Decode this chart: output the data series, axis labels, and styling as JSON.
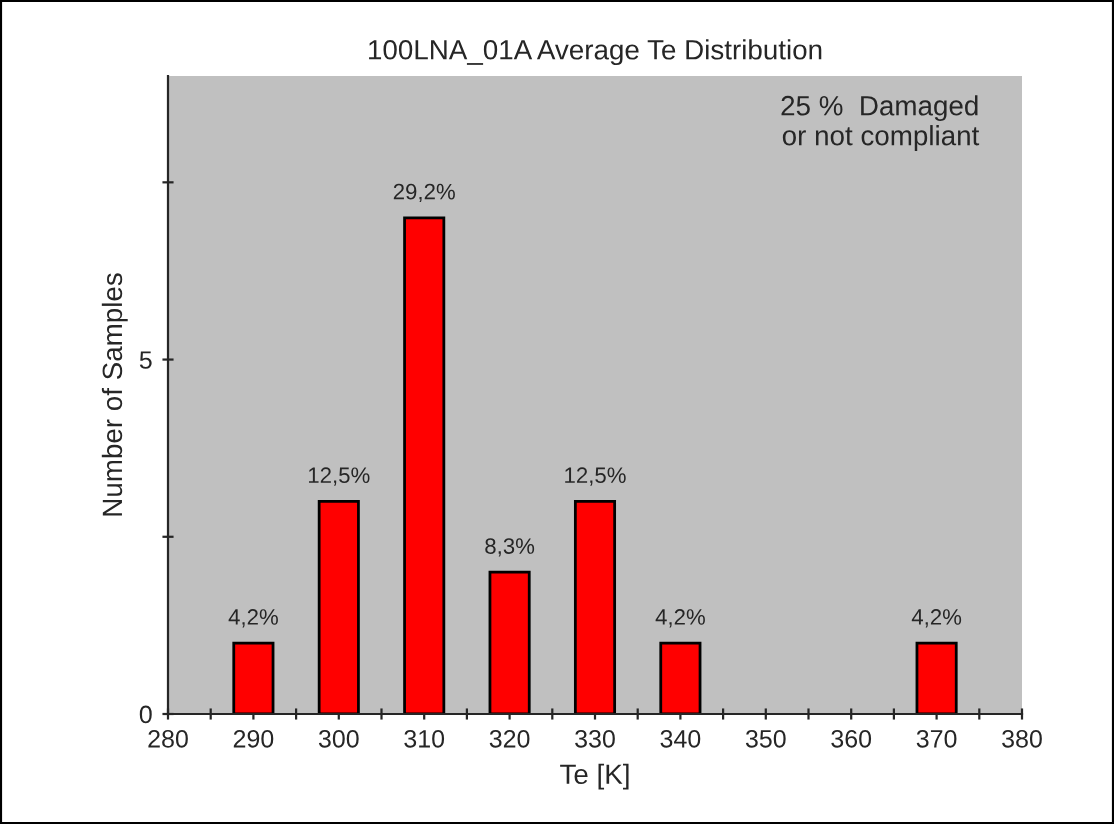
{
  "chart_data": {
    "type": "bar",
    "title": "100LNA_01A Average Te Distribution",
    "xlabel": "Te [K]",
    "ylabel": "Number of Samples",
    "x": [
      290,
      300,
      310,
      320,
      330,
      340,
      370
    ],
    "values": [
      1,
      3,
      7,
      2,
      3,
      1,
      1
    ],
    "color": "#ff0000",
    "xlim": [
      280,
      380
    ],
    "xticks": [
      280,
      {
        "value": 285,
        "label": null
      },
      290,
      {
        "value": 295,
        "label": null
      },
      300,
      {
        "value": 305,
        "label": null
      },
      310,
      {
        "value": 315,
        "label": null
      },
      320,
      {
        "value": 325,
        "label": null
      },
      330,
      {
        "value": 335,
        "label": null
      },
      340,
      {
        "value": 345,
        "label": null
      },
      350,
      {
        "value": 355,
        "label": null
      },
      360,
      {
        "value": 365,
        "label": null
      },
      370,
      {
        "value": 375,
        "label": null
      },
      380
    ],
    "ylim": [
      0,
      9
    ],
    "yticks": [
      0,
      {
        "value": 2.5,
        "label": null
      },
      5,
      {
        "value": 7.5,
        "label": null
      }
    ],
    "annotations": [
      "25 %  Damaged\nor not compliant",
      {
        "text": "4,2%",
        "x": 290,
        "y": 1
      },
      {
        "text": "12,5%",
        "x": 300,
        "y": 3
      },
      {
        "text": "29,2%",
        "x": 310,
        "y": 7
      },
      {
        "text": "8,3%",
        "x": 320,
        "y": 2
      },
      {
        "text": "12,5%",
        "x": 330,
        "y": 3
      },
      {
        "text": "4,2%",
        "x": 340,
        "y": 1
      },
      {
        "text": "4,2%",
        "x": 370,
        "y": 1
      }
    ],
    "grid": false,
    "legend": false
  }
}
